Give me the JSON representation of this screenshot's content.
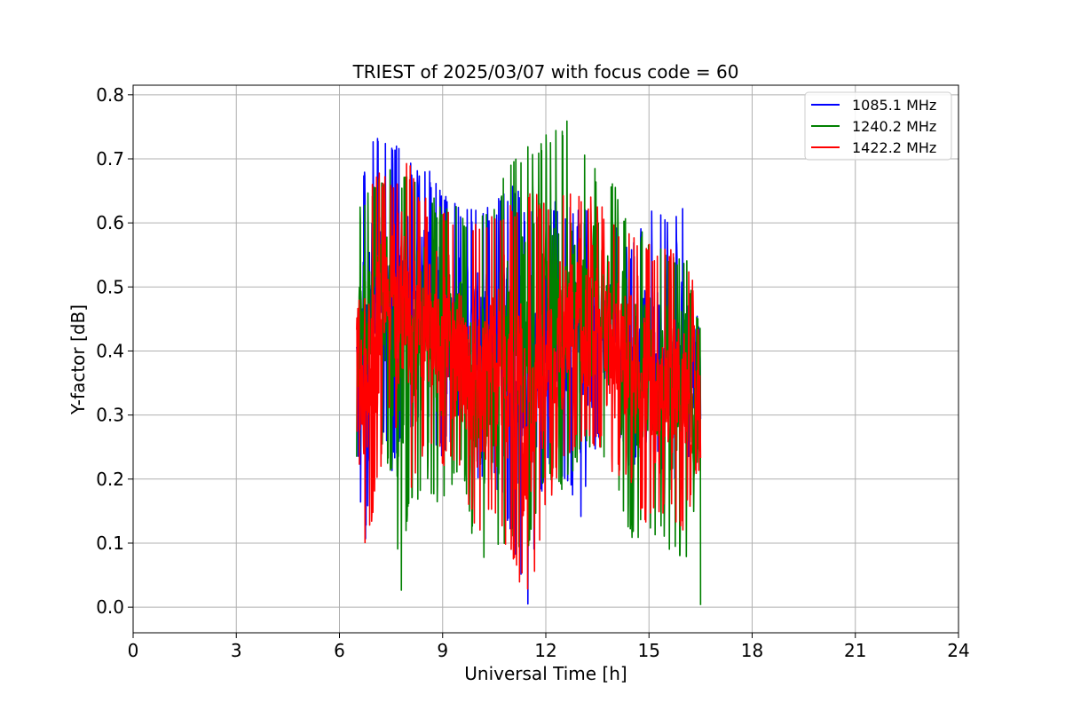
{
  "chart_data": {
    "type": "line",
    "title": "TRIEST of 2025/03/07 with focus code = 60",
    "xlabel": "Universal Time [h]",
    "ylabel": "Y-factor [dB]",
    "xlim": [
      0,
      24
    ],
    "ylim": [
      -0.04,
      0.815
    ],
    "xticks": [
      0,
      3,
      6,
      9,
      12,
      15,
      18,
      21,
      24
    ],
    "yticks": [
      0.0,
      0.1,
      0.2,
      0.3,
      0.4,
      0.5,
      0.6,
      0.7,
      0.8
    ],
    "xtick_labels": [
      "0",
      "3",
      "6",
      "9",
      "12",
      "15",
      "18",
      "21",
      "24"
    ],
    "ytick_labels": [
      "0.0",
      "0.1",
      "0.2",
      "0.3",
      "0.4",
      "0.5",
      "0.6",
      "0.7",
      "0.8"
    ],
    "grid": true,
    "legend_position": "top-right",
    "x_range_of_data": [
      6.5,
      16.5
    ],
    "series": [
      {
        "name": "1085.1 MHz",
        "color": "#0000ff",
        "envelope": [
          {
            "x": 6.5,
            "min": 0.27,
            "max": 0.62
          },
          {
            "x": 6.7,
            "min": 0.05,
            "max": 0.69
          },
          {
            "x": 7.0,
            "min": 0.3,
            "max": 0.75
          },
          {
            "x": 7.5,
            "min": 0.21,
            "max": 0.73
          },
          {
            "x": 8.0,
            "min": 0.27,
            "max": 0.7
          },
          {
            "x": 8.5,
            "min": 0.3,
            "max": 0.69
          },
          {
            "x": 9.0,
            "min": 0.22,
            "max": 0.66
          },
          {
            "x": 9.5,
            "min": 0.3,
            "max": 0.63
          },
          {
            "x": 10.0,
            "min": 0.2,
            "max": 0.62
          },
          {
            "x": 10.5,
            "min": 0.2,
            "max": 0.63
          },
          {
            "x": 11.0,
            "min": 0.1,
            "max": 0.67
          },
          {
            "x": 11.5,
            "min": 0.0,
            "max": 0.62
          },
          {
            "x": 12.0,
            "min": 0.23,
            "max": 0.65
          },
          {
            "x": 12.5,
            "min": 0.2,
            "max": 0.63
          },
          {
            "x": 13.0,
            "min": 0.13,
            "max": 0.62
          },
          {
            "x": 13.5,
            "min": 0.25,
            "max": 0.63
          },
          {
            "x": 14.0,
            "min": 0.27,
            "max": 0.6
          },
          {
            "x": 14.5,
            "min": 0.2,
            "max": 0.57
          },
          {
            "x": 15.0,
            "min": 0.25,
            "max": 0.62
          },
          {
            "x": 15.5,
            "min": 0.18,
            "max": 0.61
          },
          {
            "x": 16.0,
            "min": 0.18,
            "max": 0.63
          },
          {
            "x": 16.5,
            "min": 0.28,
            "max": 0.5
          }
        ]
      },
      {
        "name": "1240.2 MHz",
        "color": "#008000",
        "envelope": [
          {
            "x": 6.5,
            "min": 0.21,
            "max": 0.6
          },
          {
            "x": 6.7,
            "min": 0.24,
            "max": 0.65
          },
          {
            "x": 7.0,
            "min": 0.3,
            "max": 0.67
          },
          {
            "x": 7.5,
            "min": 0.2,
            "max": 0.69
          },
          {
            "x": 7.8,
            "min": 0.02,
            "max": 0.68
          },
          {
            "x": 8.0,
            "min": 0.14,
            "max": 0.69
          },
          {
            "x": 8.5,
            "min": 0.18,
            "max": 0.67
          },
          {
            "x": 9.0,
            "min": 0.14,
            "max": 0.62
          },
          {
            "x": 9.5,
            "min": 0.22,
            "max": 0.63
          },
          {
            "x": 10.0,
            "min": 0.06,
            "max": 0.6
          },
          {
            "x": 10.5,
            "min": 0.07,
            "max": 0.64
          },
          {
            "x": 11.0,
            "min": 0.1,
            "max": 0.71
          },
          {
            "x": 11.5,
            "min": 0.08,
            "max": 0.73
          },
          {
            "x": 12.0,
            "min": 0.2,
            "max": 0.74
          },
          {
            "x": 12.5,
            "min": 0.18,
            "max": 0.75
          },
          {
            "x": 12.8,
            "min": 0.2,
            "max": 0.78
          },
          {
            "x": 13.0,
            "min": 0.22,
            "max": 0.72
          },
          {
            "x": 13.5,
            "min": 0.25,
            "max": 0.69
          },
          {
            "x": 14.0,
            "min": 0.2,
            "max": 0.66
          },
          {
            "x": 14.5,
            "min": 0.1,
            "max": 0.6
          },
          {
            "x": 15.0,
            "min": 0.12,
            "max": 0.59
          },
          {
            "x": 15.5,
            "min": 0.09,
            "max": 0.55
          },
          {
            "x": 16.0,
            "min": 0.07,
            "max": 0.57
          },
          {
            "x": 16.5,
            "min": 0.0,
            "max": 0.44
          }
        ]
      },
      {
        "name": "1422.2 MHz",
        "color": "#ff0000",
        "envelope": [
          {
            "x": 6.5,
            "min": 0.28,
            "max": 0.58
          },
          {
            "x": 6.7,
            "min": 0.07,
            "max": 0.62
          },
          {
            "x": 7.0,
            "min": 0.15,
            "max": 0.68
          },
          {
            "x": 7.5,
            "min": 0.3,
            "max": 0.68
          },
          {
            "x": 8.0,
            "min": 0.14,
            "max": 0.7
          },
          {
            "x": 8.5,
            "min": 0.25,
            "max": 0.64
          },
          {
            "x": 9.0,
            "min": 0.22,
            "max": 0.62
          },
          {
            "x": 9.5,
            "min": 0.2,
            "max": 0.62
          },
          {
            "x": 10.0,
            "min": 0.1,
            "max": 0.6
          },
          {
            "x": 10.5,
            "min": 0.15,
            "max": 0.62
          },
          {
            "x": 11.0,
            "min": 0.07,
            "max": 0.63
          },
          {
            "x": 11.5,
            "min": 0.0,
            "max": 0.65
          },
          {
            "x": 12.0,
            "min": 0.15,
            "max": 0.64
          },
          {
            "x": 12.5,
            "min": 0.22,
            "max": 0.65
          },
          {
            "x": 13.0,
            "min": 0.25,
            "max": 0.65
          },
          {
            "x": 13.5,
            "min": 0.25,
            "max": 0.64
          },
          {
            "x": 14.0,
            "min": 0.2,
            "max": 0.61
          },
          {
            "x": 14.5,
            "min": 0.18,
            "max": 0.6
          },
          {
            "x": 15.0,
            "min": 0.12,
            "max": 0.57
          },
          {
            "x": 15.5,
            "min": 0.14,
            "max": 0.56
          },
          {
            "x": 16.0,
            "min": 0.12,
            "max": 0.6
          },
          {
            "x": 16.5,
            "min": 0.21,
            "max": 0.44
          }
        ]
      }
    ]
  }
}
